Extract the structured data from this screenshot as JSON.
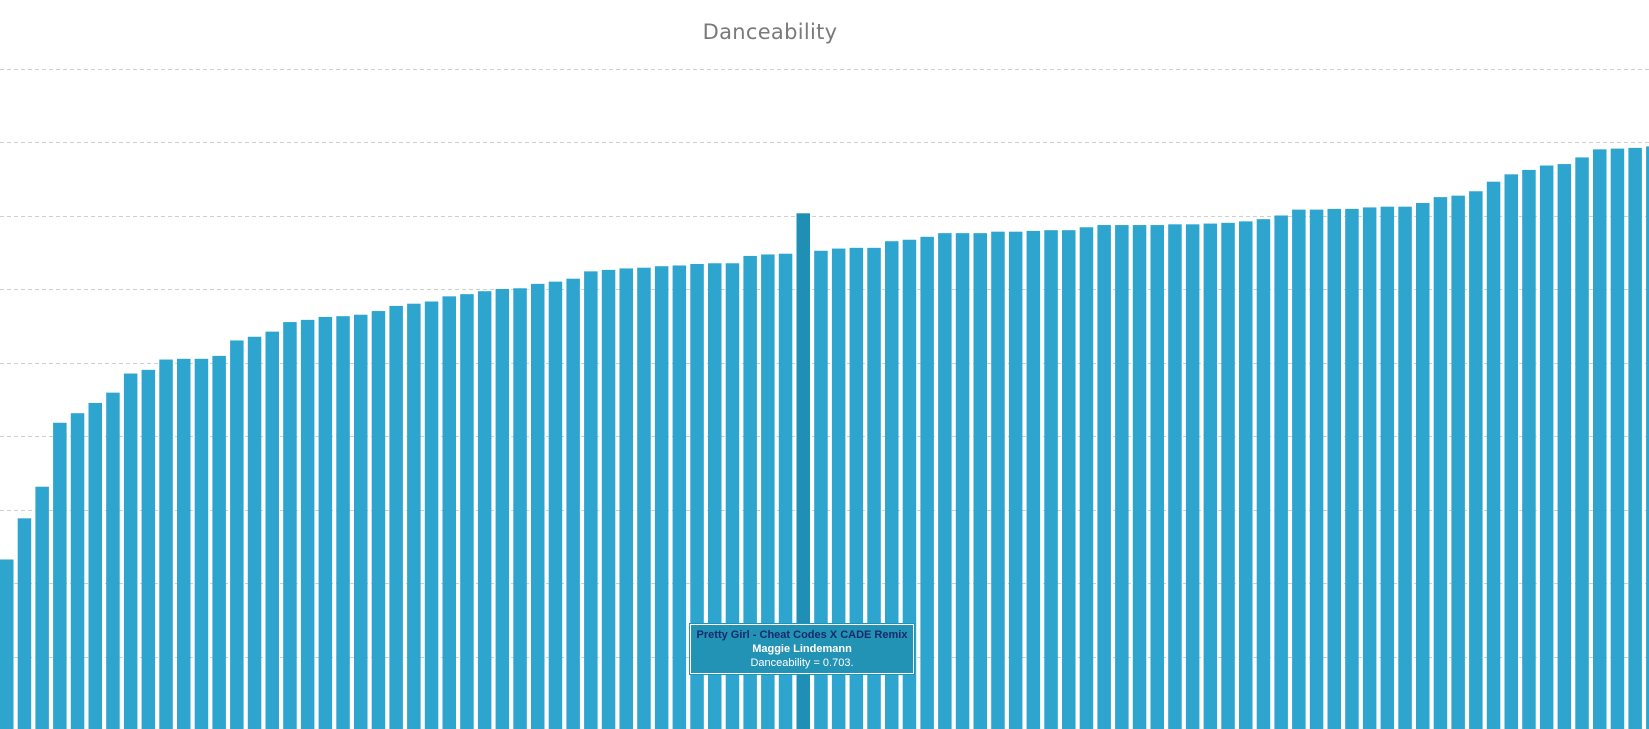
{
  "chart_data": {
    "type": "bar",
    "title": "Danceability",
    "xlabel": "",
    "ylabel": "",
    "ylim": [
      0.0,
      0.9
    ],
    "y_gridlines": [
      0.1,
      0.2,
      0.3,
      0.4,
      0.5,
      0.6,
      0.7,
      0.8,
      0.9
    ],
    "grid": true,
    "bar_color": "#2ea5cf",
    "highlight_color": "#1f8fb5",
    "highlight_index": 45,
    "values": [
      0.232,
      0.288,
      0.331,
      0.418,
      0.431,
      0.445,
      0.459,
      0.485,
      0.49,
      0.504,
      0.505,
      0.505,
      0.509,
      0.53,
      0.535,
      0.542,
      0.555,
      0.558,
      0.562,
      0.563,
      0.565,
      0.57,
      0.577,
      0.58,
      0.583,
      0.59,
      0.593,
      0.597,
      0.6,
      0.601,
      0.607,
      0.61,
      0.614,
      0.624,
      0.626,
      0.628,
      0.629,
      0.631,
      0.632,
      0.634,
      0.635,
      0.635,
      0.645,
      0.647,
      0.648,
      0.703,
      0.652,
      0.655,
      0.656,
      0.656,
      0.665,
      0.667,
      0.671,
      0.676,
      0.676,
      0.676,
      0.678,
      0.678,
      0.679,
      0.68,
      0.68,
      0.684,
      0.687,
      0.687,
      0.687,
      0.687,
      0.688,
      0.688,
      0.689,
      0.69,
      0.692,
      0.695,
      0.7,
      0.708,
      0.708,
      0.709,
      0.709,
      0.711,
      0.712,
      0.712,
      0.717,
      0.725,
      0.727,
      0.733,
      0.746,
      0.756,
      0.762,
      0.768,
      0.77,
      0.779,
      0.79,
      0.791,
      0.792,
      0.794
    ]
  },
  "tooltip": {
    "track": "Pretty Girl - Cheat Codes X CADE Remix",
    "artist": "Maggie Lindemann",
    "value_text": "Danceability = 0.703."
  }
}
